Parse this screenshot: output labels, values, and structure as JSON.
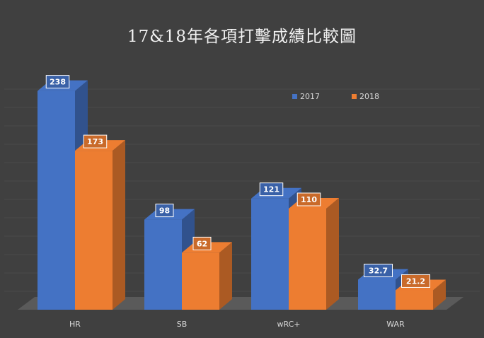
{
  "chart_data": {
    "type": "bar",
    "title": "17&18年各項打擊成績比較圖",
    "categories": [
      "HR",
      "SB",
      "wRC+",
      "WAR"
    ],
    "series": [
      {
        "name": "2017",
        "values": [
          238,
          98,
          121,
          32.7
        ],
        "labels": [
          "238",
          "98",
          "121",
          "32.7"
        ],
        "color": "#4472c4"
      },
      {
        "name": "2018",
        "values": [
          173,
          62,
          110,
          21.2
        ],
        "labels": [
          "173",
          "62",
          "110",
          "21.2"
        ],
        "color": "#ed7d31"
      }
    ],
    "ylim": [
      0,
      240
    ],
    "grid": true,
    "legend_position": "top-right",
    "style": "3d-column",
    "background": "#404040"
  }
}
